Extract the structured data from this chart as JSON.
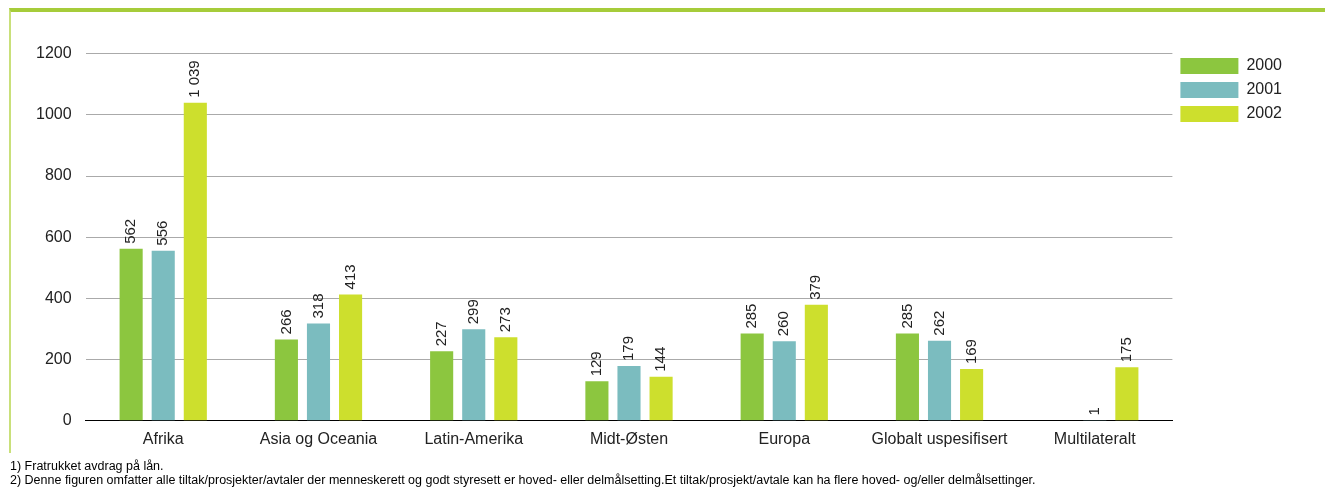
{
  "chart_data": {
    "type": "bar",
    "categories": [
      "Afrika",
      "Asia og Oceania",
      "Latin-Amerika",
      "Midt-Østen",
      "Europa",
      "Globalt uspesifisert",
      "Multilateralt"
    ],
    "series": [
      {
        "name": "2000",
        "color": "#8cc63f",
        "values": [
          562,
          266,
          227,
          129,
          285,
          285,
          null
        ],
        "value_labels": [
          "562",
          "266",
          "227",
          "129",
          "285",
          "285",
          null
        ]
      },
      {
        "name": "2001",
        "color": "#7bbcbf",
        "values": [
          556,
          318,
          299,
          179,
          260,
          262,
          1
        ],
        "value_labels": [
          "556",
          "318",
          "299",
          "179",
          "260",
          "262",
          "1"
        ]
      },
      {
        "name": "2002",
        "color": "#cddf2d",
        "values": [
          1039,
          413,
          273,
          144,
          379,
          169,
          175
        ],
        "value_labels": [
          "1 039",
          "413",
          "273",
          "144",
          "379",
          "169",
          "175"
        ]
      }
    ],
    "ylim": [
      0,
      1200
    ],
    "yticks": [
      0,
      200,
      400,
      600,
      800,
      1000,
      1200
    ],
    "grid": "y",
    "legend": "top right",
    "annotations": [
      "1) Fratrukket avdrag på lån.",
      "2) Denne figuren omfatter alle tiltak/prosjekter/avtaler der menneskerett og godt styresett er hoved- eller delmålsetting.Et tiltak/prosjekt/avtale kan ha flere hoved- og/eller delmålsettinger."
    ]
  }
}
